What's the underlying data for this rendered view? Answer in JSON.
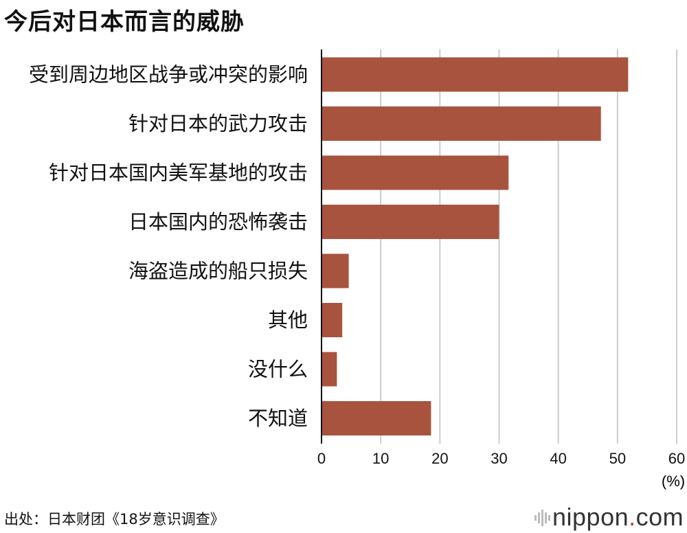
{
  "title": "今后对日本而言的威胁",
  "source": "出处：日本财团《18岁意识调查》",
  "logo": {
    "name": "nippon",
    "dot": ".",
    "suffix": "com"
  },
  "colors": {
    "bar": "#A8533E",
    "grid": "#cccccc",
    "axis": "#111111"
  },
  "chart_data": {
    "type": "bar",
    "orientation": "horizontal",
    "categories": [
      "受到周边地区战争或冲突的影响",
      "针对日本的武力攻击",
      "针对日本国内美军基地的攻击",
      "日本国内的恐怖袭击",
      "海盗造成的船只损失",
      "其他",
      "没什么",
      "不知道"
    ],
    "values": [
      51.8,
      47.2,
      31.6,
      30.0,
      4.6,
      3.5,
      2.6,
      18.5
    ],
    "xlim": [
      0,
      60
    ],
    "xticks": [
      "0",
      "10",
      "20",
      "30",
      "40",
      "50",
      "60"
    ],
    "xunit": "(%)",
    "grid": true
  }
}
